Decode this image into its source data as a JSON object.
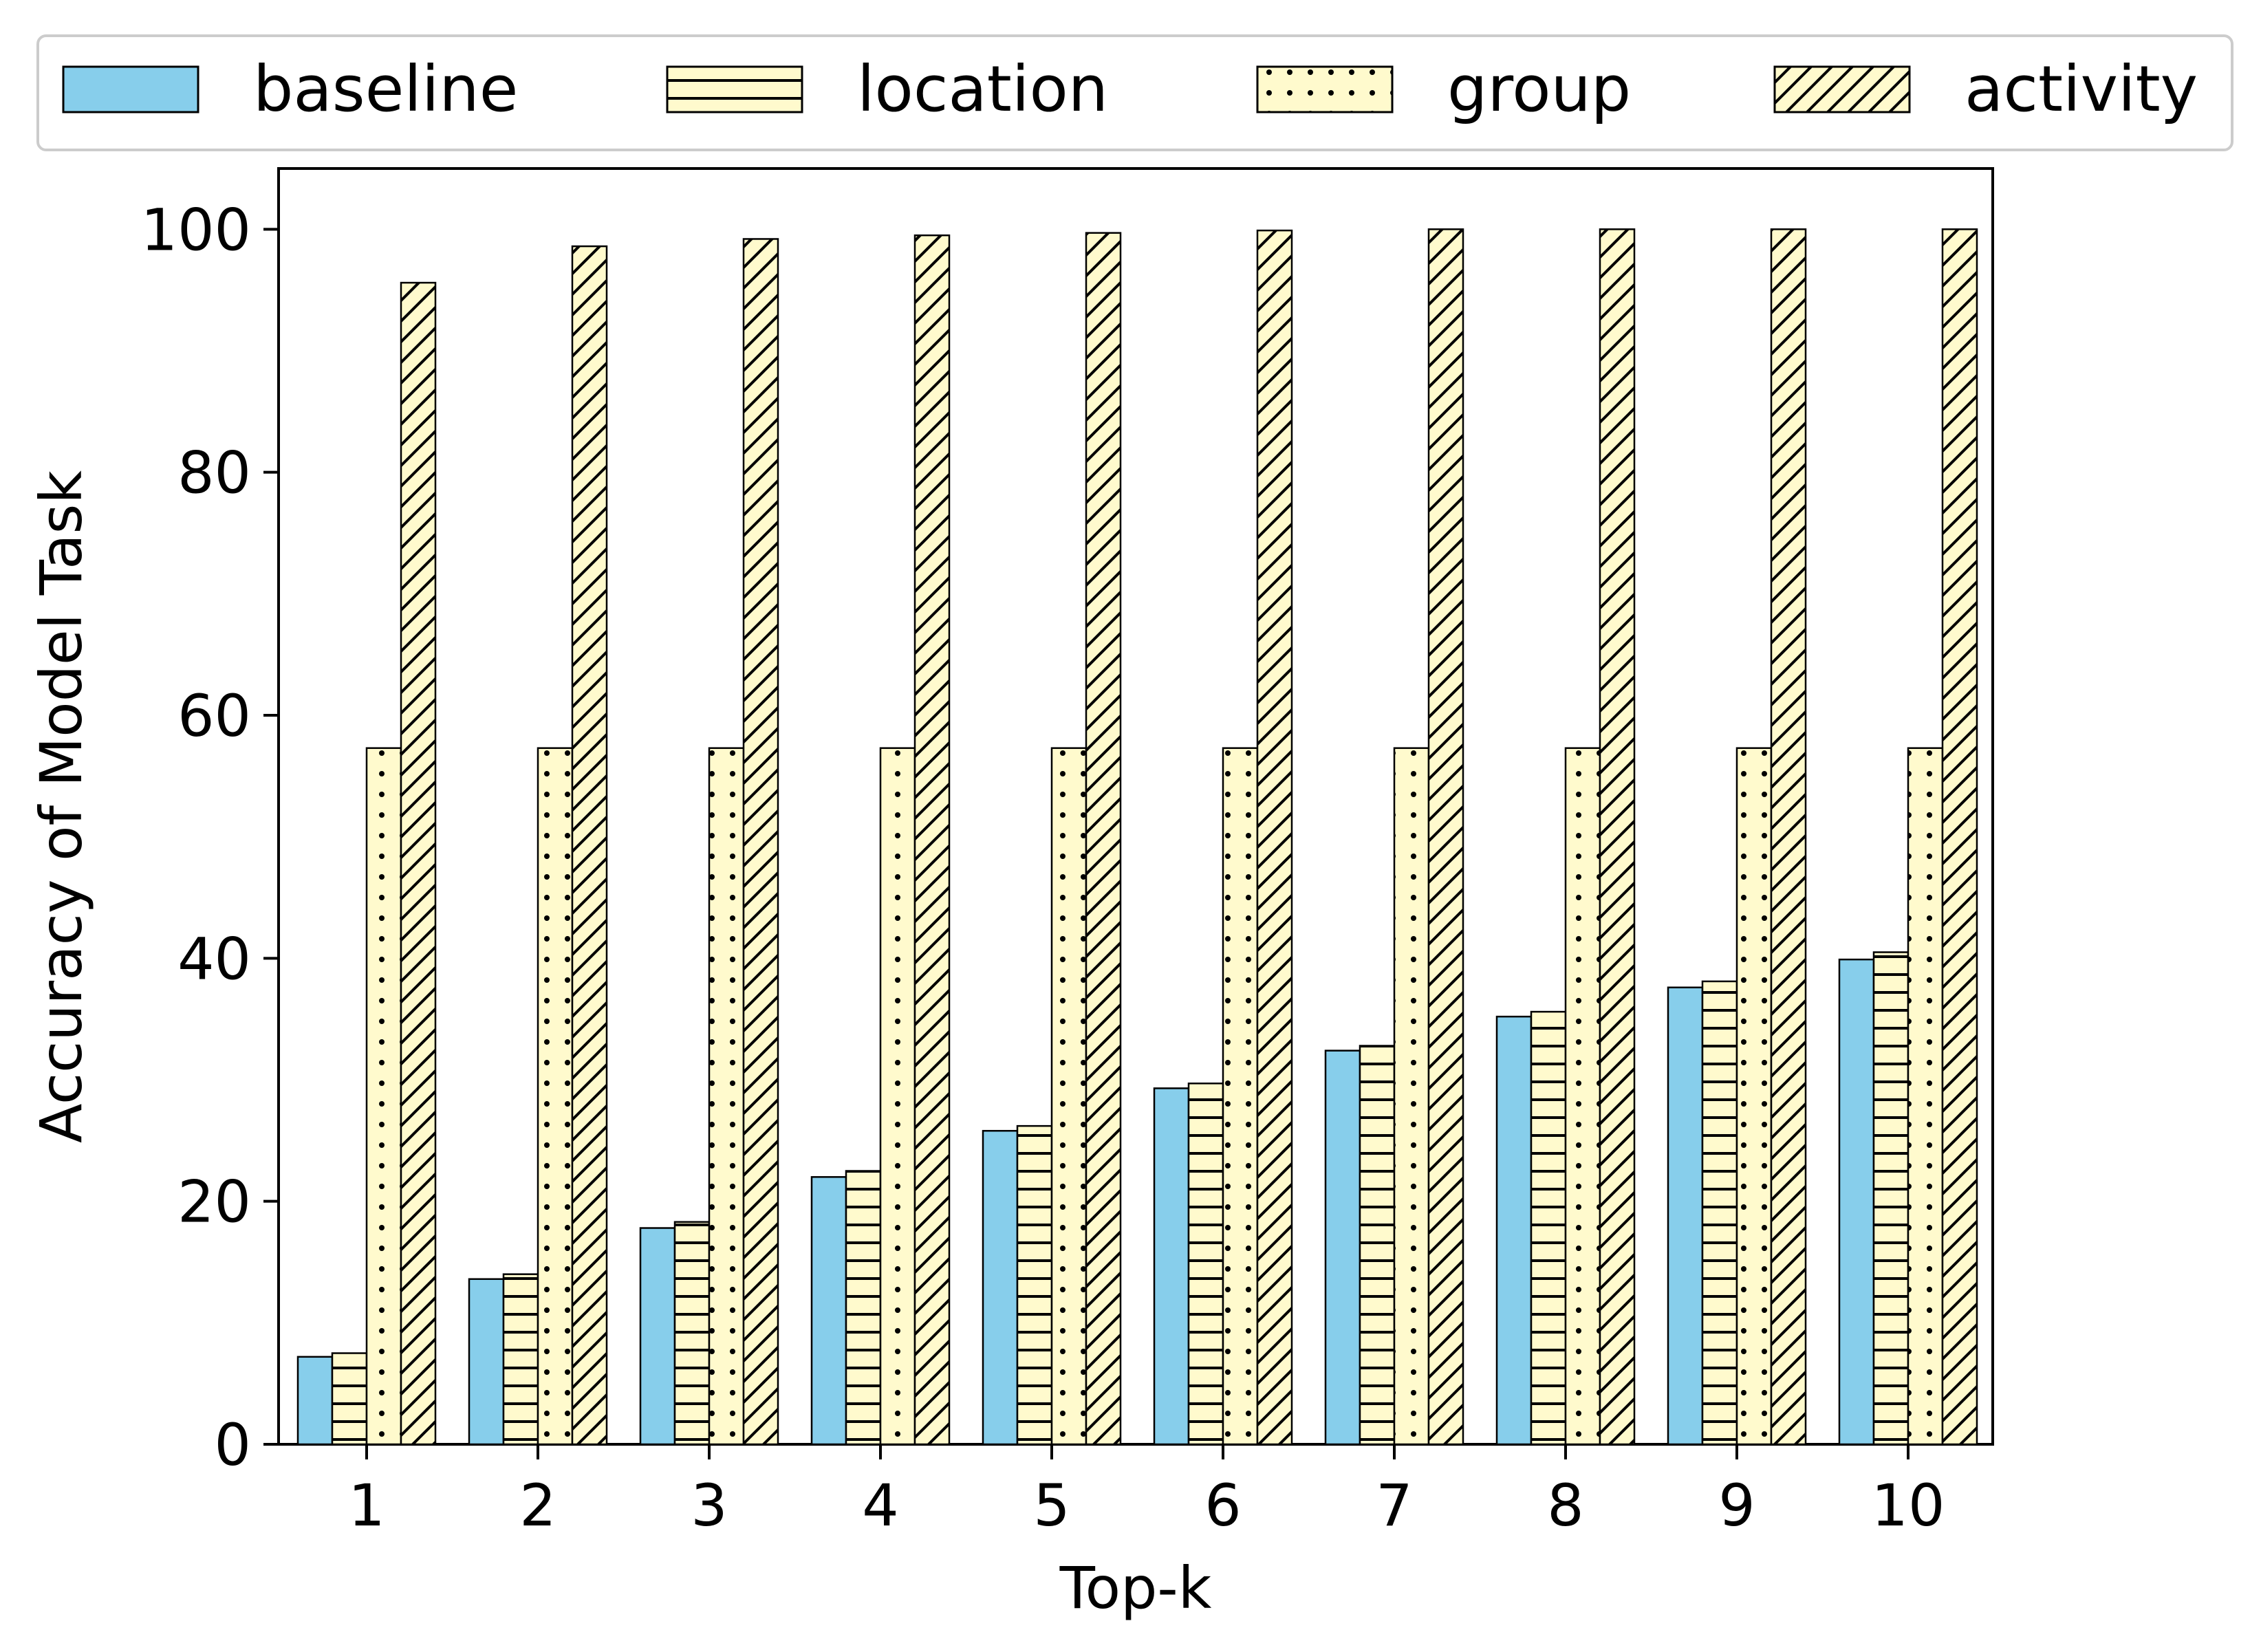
{
  "chart_data": {
    "type": "bar",
    "title": "",
    "xlabel": "Top-k",
    "ylabel": "Accuracy of Model Task",
    "categories": [
      "1",
      "2",
      "3",
      "4",
      "5",
      "6",
      "7",
      "8",
      "9",
      "10"
    ],
    "ylim": [
      0,
      105
    ],
    "yticks": [
      "0",
      "20",
      "40",
      "60",
      "80",
      "100"
    ],
    "grid": false,
    "legend_position": "top",
    "series": [
      {
        "name": "baseline",
        "pattern": "solid",
        "color": "#87CEEB",
        "values": [
          7.2,
          13.6,
          17.8,
          22.0,
          25.8,
          29.3,
          32.4,
          35.2,
          37.6,
          39.9
        ]
      },
      {
        "name": "location",
        "pattern": "horizontal-lines",
        "color": "#FFFACD",
        "values": [
          7.5,
          14.0,
          18.3,
          22.5,
          26.2,
          29.7,
          32.8,
          35.6,
          38.1,
          40.5
        ]
      },
      {
        "name": "group",
        "pattern": "dots",
        "color": "#FFFACD",
        "values": [
          57.3,
          57.3,
          57.3,
          57.3,
          57.3,
          57.3,
          57.3,
          57.3,
          57.3,
          57.3
        ]
      },
      {
        "name": "activity",
        "pattern": "diagonal-lines",
        "color": "#FFFACD",
        "values": [
          95.6,
          98.6,
          99.2,
          99.5,
          99.7,
          99.9,
          100.0,
          100.0,
          100.0,
          100.0
        ]
      }
    ]
  }
}
